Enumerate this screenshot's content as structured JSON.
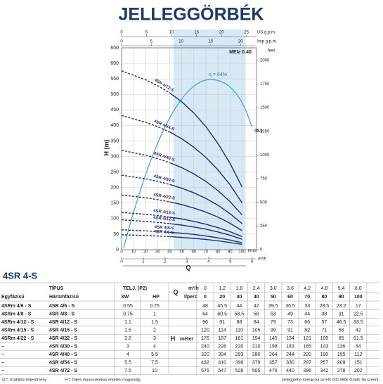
{
  "title": "JELLEGGÖRBÉK",
  "chart_data": {
    "type": "line",
    "y_label": "H (m)",
    "x_label": "Q",
    "x_unit": "l/min",
    "x2_unit": "m³/h",
    "top_unit": "US g.p.m.",
    "top2_unit": "Imp g.p.m.",
    "y2_label": "feet",
    "x": [
      0,
      20,
      30,
      40,
      50,
      60,
      70,
      80,
      90,
      100
    ],
    "xlim": [
      0,
      112
    ],
    "xticks": [
      0,
      10,
      20,
      30,
      40,
      50,
      60,
      70,
      80,
      90,
      100
    ],
    "x2lim": [
      0,
      6.2
    ],
    "x2ticks": [
      0,
      1,
      2,
      3,
      4,
      5,
      6
    ],
    "top_lim": [
      0,
      27
    ],
    "top_ticks": [
      0,
      5,
      10,
      15,
      20,
      25
    ],
    "top2_lim": [
      0,
      22.7
    ],
    "top2_ticks": [
      0,
      5,
      10,
      15,
      20
    ],
    "ylim": [
      0,
      650
    ],
    "yticks": [
      0,
      50,
      100,
      150,
      200,
      250,
      300,
      350,
      400,
      450,
      500,
      550,
      600,
      650
    ],
    "y2lim": [
      0,
      2132
    ],
    "y2ticks": [
      0,
      250,
      500,
      750,
      1000,
      1250,
      1500,
      1750,
      2000
    ],
    "grid": true,
    "dashed_until": 40,
    "shaded_range": [
      43,
      103
    ],
    "annotations": {
      "mei": "MEI≥ 0.40",
      "eta_peak": "η = 64%",
      "eta_end": "45.5"
    },
    "series": [
      {
        "name": "4SR 4/6-S",
        "color": "#1f2d6e",
        "values": [
          48,
          45.5,
          44,
          42,
          39.5,
          36.5,
          33,
          28.5,
          23.2,
          17
        ]
      },
      {
        "name": "4SR 4/8-S",
        "color": "#1f2d6e",
        "values": [
          64,
          60.5,
          58.5,
          56,
          53,
          49,
          44,
          38,
          31,
          22.5
        ]
      },
      {
        "name": "4SR 4/12-S",
        "color": "#1f2d6e",
        "values": [
          96,
          91,
          88,
          84,
          79,
          73,
          66,
          57,
          46.5,
          33.5
        ]
      },
      {
        "name": "4SR 4/15-S",
        "color": "#1f2d6e",
        "values": [
          120,
          114,
          110,
          105,
          99,
          91,
          82,
          71,
          58,
          42
        ]
      },
      {
        "name": "4SR 4/22-S",
        "color": "#1f2d6e",
        "values": [
          176,
          167,
          161,
          154,
          145,
          134,
          121,
          105,
          85,
          61.5
        ]
      },
      {
        "name": "4SR 4/30-S",
        "color": "#1f2d6e",
        "values": [
          240,
          228,
          220,
          210,
          198,
          183,
          165,
          143,
          116,
          84
        ]
      },
      {
        "name": "4SR 4/40-S",
        "color": "#1f2d6e",
        "values": [
          320,
          304,
          293,
          280,
          264,
          244,
          220,
          190,
          155,
          112
        ]
      },
      {
        "name": "4SR 4/54-S",
        "color": "#1f2d6e",
        "values": [
          432,
          410,
          396,
          379,
          357,
          330,
          297,
          257,
          209,
          151
        ]
      },
      {
        "name": "4SR 4/72-S",
        "color": "#1f2d6e",
        "values": [
          576,
          547,
          528,
          505,
          476,
          440,
          396,
          342,
          278,
          202
        ]
      }
    ]
  },
  "table": {
    "title": "4SR 4-S",
    "header": {
      "type": "TÍPUS",
      "single": "Egyfázisú",
      "three": "Háromfázisú",
      "power": "TELJ. (P2)",
      "kw": "kW",
      "hp": "HP",
      "q": "Q",
      "m3h": "m³/h",
      "lperc": "l/perc",
      "h": "H",
      "meter": "méter"
    },
    "q_m3h": [
      "0",
      "1.2",
      "1.8",
      "2.4",
      "3.0",
      "3.6",
      "4.2",
      "4.8",
      "5.4",
      "6.0"
    ],
    "rows": [
      [
        "4SRm 4/6 - S",
        "4SR 4/6 - S",
        "0.55",
        "0.75"
      ],
      [
        "4SRm 4/8 - S",
        "4SR 4/8 - S",
        "0.75",
        "1"
      ],
      [
        "4SRm 4/12 - S",
        "4SR 4/12 - S",
        "1.1",
        "1.5"
      ],
      [
        "4SRm 4/15 - S",
        "4SR 4/15 - S",
        "1.5",
        "2"
      ],
      [
        "4SRm 4/22 - S",
        "4SR 4/22 - S",
        "2.2",
        "3"
      ],
      [
        "–",
        "4SR 4/30 - S",
        "3",
        "4"
      ],
      [
        "–",
        "4SR 4/40 - S",
        "4",
        "5.5"
      ],
      [
        "–",
        "4SR 4/54 - S",
        "5.5",
        "7.5"
      ],
      [
        "–",
        "4SR 4/72 - S",
        "7.5",
        "10"
      ]
    ]
  },
  "footer": {
    "q_note": "Q = Szállítási teljesítmény",
    "h_note": "H = Teljes manometrikus emelési magasság",
    "tolerance": "Jelleggörbe tolerancia az EN ISO 9906 Grado 3B szerint."
  }
}
